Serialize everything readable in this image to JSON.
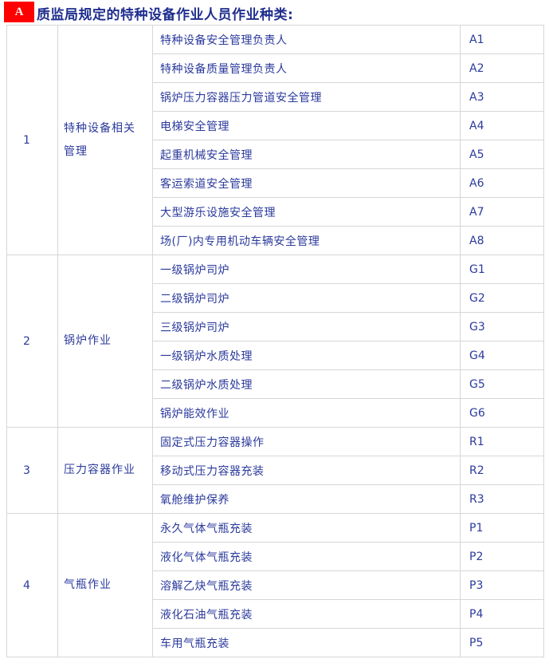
{
  "colors": {
    "badge_background": "#fe0000",
    "badge_text": "#ffffff",
    "title_text": "#1f2e8e",
    "cell_text": "#2b3a9c",
    "table_border": "#d6d6d6",
    "page_background": "#ffffff"
  },
  "header": {
    "badge_label": "A",
    "title": "质监局规定的特种设备作业人员作业种类:"
  },
  "table": {
    "groups": [
      {
        "no": "1",
        "category": "特种设备相关管理",
        "items": [
          {
            "name": "特种设备安全管理负责人",
            "code": "A1"
          },
          {
            "name": "特种设备质量管理负责人",
            "code": "A2"
          },
          {
            "name": "锅炉压力容器压力管道安全管理",
            "code": "A3"
          },
          {
            "name": "电梯安全管理",
            "code": "A4"
          },
          {
            "name": "起重机械安全管理",
            "code": "A5"
          },
          {
            "name": "客运索道安全管理",
            "code": "A6"
          },
          {
            "name": "大型游乐设施安全管理",
            "code": "A7"
          },
          {
            "name": "场(厂)内专用机动车辆安全管理",
            "code": "A8"
          }
        ]
      },
      {
        "no": "2",
        "category": "锅炉作业",
        "items": [
          {
            "name": "一级锅炉司炉",
            "code": "G1"
          },
          {
            "name": "二级锅炉司炉",
            "code": "G2"
          },
          {
            "name": "三级锅炉司炉",
            "code": "G3"
          },
          {
            "name": "一级锅炉水质处理",
            "code": "G4"
          },
          {
            "name": "二级锅炉水质处理",
            "code": "G5"
          },
          {
            "name": "锅炉能效作业",
            "code": "G6"
          }
        ]
      },
      {
        "no": "3",
        "category": "压力容器作业",
        "items": [
          {
            "name": "固定式压力容器操作",
            "code": "R1"
          },
          {
            "name": "移动式压力容器充装",
            "code": "R2"
          },
          {
            "name": "氧舱维护保养",
            "code": "R3"
          }
        ]
      },
      {
        "no": "4",
        "category": "气瓶作业",
        "items": [
          {
            "name": "永久气体气瓶充装",
            "code": "P1"
          },
          {
            "name": "液化气体气瓶充装",
            "code": "P2"
          },
          {
            "name": "溶解乙炔气瓶充装",
            "code": "P3"
          },
          {
            "name": "液化石油气瓶充装",
            "code": "P4"
          },
          {
            "name": "车用气瓶充装",
            "code": "P5"
          }
        ]
      }
    ]
  }
}
